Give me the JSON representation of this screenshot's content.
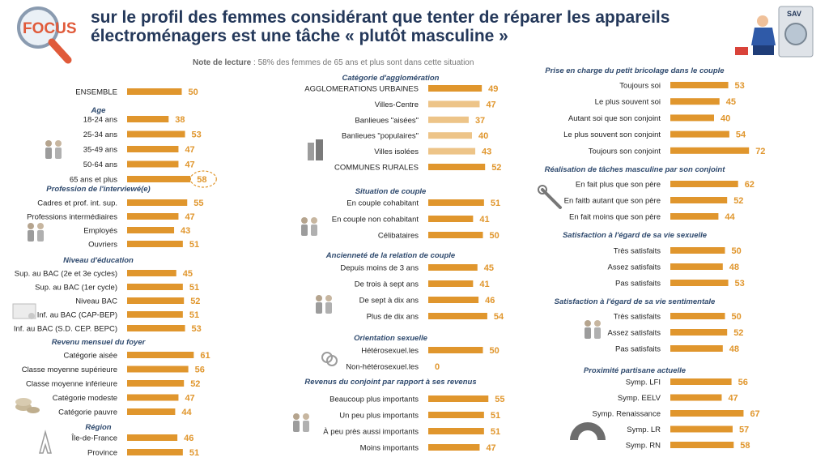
{
  "header": {
    "logo_text": "FOCUS",
    "title": "sur le profil des femmes considérant que tenter de réparer les appareils électroménagers est une tâche « plutôt masculine »",
    "note_label": "Note de lecture",
    "note_text": " : 58% des femmes  de 65 ans et plus sont dans cette situation",
    "illustration_text": "SAV"
  },
  "colors": {
    "bar": "#e0962d",
    "bar_light": "#edc488",
    "value_text": "#e0962d",
    "title": "#24385a",
    "section": "#2f4a6e"
  },
  "chart_data": {
    "type": "bar",
    "orientation": "horizontal",
    "unit": "%",
    "groups": [
      {
        "title": "",
        "icon": "",
        "categories": [
          "ENSEMBLE"
        ],
        "values": [
          50
        ]
      },
      {
        "title": "Age",
        "icon": "people-icon",
        "categories": [
          "18-24 ans",
          "25-34 ans",
          "35-49 ans",
          "50-64 ans",
          "65 ans et plus"
        ],
        "values": [
          38,
          53,
          47,
          47,
          58
        ],
        "highlight": "65 ans et plus"
      },
      {
        "title": "Profession de l'interviewé(e)",
        "icon": "workers-icon",
        "categories": [
          "Cadres et prof. int. sup.",
          "Professions intermédiaires",
          "Employés",
          "Ouvriers"
        ],
        "values": [
          55,
          47,
          43,
          51
        ]
      },
      {
        "title": "Niveau d'éducation",
        "icon": "diploma-icon",
        "categories": [
          "Sup. au BAC (2e et 3e cycles)",
          "Sup. au BAC (1er cycle)",
          "Niveau BAC",
          "Inf. au BAC (CAP-BEP)",
          "Inf. au BAC (S.D. CEP. BEPC)"
        ],
        "values": [
          45,
          51,
          52,
          51,
          53
        ]
      },
      {
        "title": "Revenu mensuel du foyer",
        "icon": "coins-icon",
        "categories": [
          "Catégorie aisée",
          "Classe moyenne supérieure",
          "Classe moyenne inférieure",
          "Catégorie modeste",
          "Catégorie pauvre"
        ],
        "values": [
          61,
          56,
          52,
          47,
          44
        ]
      },
      {
        "title": "Région",
        "icon": "eiffel-tower-icon",
        "categories": [
          "Île-de-France",
          "Province"
        ],
        "values": [
          46,
          51
        ]
      },
      {
        "title": "Catégorie d'agglomération",
        "icon": "buildings-icon",
        "categories": [
          "AGGLOMERATIONS URBAINES",
          "Villes-Centre",
          "Banlieues \"aisées\"",
          "Banlieues \"populaires\"",
          "Villes isolées",
          "COMMUNES RURALES"
        ],
        "values": [
          49,
          47,
          37,
          40,
          43,
          52
        ],
        "light": [
          false,
          true,
          true,
          true,
          true,
          false
        ]
      },
      {
        "title": "Situation de couple",
        "icon": "couple-icon",
        "categories": [
          "En couple cohabitant",
          "En couple non cohabitant",
          "Célibataires"
        ],
        "values": [
          51,
          41,
          50
        ]
      },
      {
        "title": "Ancienneté de la relation de couple",
        "icon": "calendar-couple-icon",
        "categories": [
          "Depuis moins de 3 ans",
          "De trois à sept ans",
          "De sept à dix ans",
          "Plus de dix ans"
        ],
        "values": [
          45,
          41,
          46,
          54
        ]
      },
      {
        "title": "Orientation sexuelle",
        "icon": "gender-symbols-icon",
        "categories": [
          "Hétérosexuel.les",
          "Non-hétérosexuel.les"
        ],
        "values": [
          50,
          0
        ]
      },
      {
        "title": "Revenus du conjoint par rapport à ses revenus",
        "icon": "couple-money-icon",
        "categories": [
          "Beaucoup plus importants",
          "Un peu plus importants",
          "À peu près aussi importants",
          "Moins importants"
        ],
        "values": [
          55,
          51,
          51,
          47
        ]
      },
      {
        "title": "Prise en charge du petit bricolage dans le couple",
        "icon": "",
        "categories": [
          "Toujours soi",
          "Le plus souvent soi",
          "Autant soi que son conjoint",
          "Le plus souvent son conjoint",
          "Toujours son conjoint"
        ],
        "values": [
          53,
          45,
          40,
          54,
          72
        ]
      },
      {
        "title": "Réalisation de tâches masculine par son conjoint",
        "icon": "tools-icon",
        "categories": [
          "En fait plus que son père",
          "En faitb autant que son père",
          "En fait moins que son père"
        ],
        "values": [
          62,
          52,
          44
        ]
      },
      {
        "title": "Satisfaction à l'égard de sa vie sexuelle",
        "icon": "",
        "categories": [
          "Très satisfaits",
          "Assez satisfaits",
          "Pas satisfaits"
        ],
        "values": [
          50,
          48,
          53
        ]
      },
      {
        "title": "Satisfaction à l'égard de sa vie sentimentale",
        "icon": "hug-icon",
        "categories": [
          "Très satisfaits",
          "Assez satisfaits",
          "Pas satisfaits"
        ],
        "values": [
          50,
          52,
          48
        ]
      },
      {
        "title": "Proximité partisane actuelle",
        "icon": "hemicycle-icon",
        "categories": [
          "Symp. LFI",
          "Symp. EELV",
          "Symp. Renaissance",
          "Symp. LR",
          "Symp. RN"
        ],
        "values": [
          56,
          47,
          67,
          57,
          58
        ]
      }
    ]
  }
}
